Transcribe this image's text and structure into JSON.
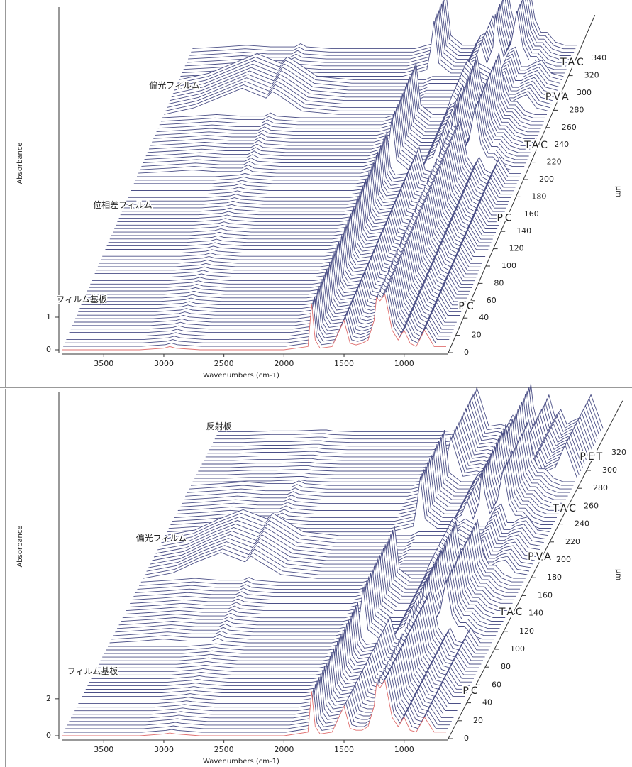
{
  "chart_data": [
    {
      "type": "waterfall",
      "xlabel": "Wavenumbers (cm-1)",
      "ylabel": "Absorbance",
      "zlabel": "μm",
      "xlim": [
        3850,
        650
      ],
      "xticks": [
        3500,
        3000,
        2500,
        2000,
        1500,
        1000
      ],
      "ylim": [
        0,
        10.5
      ],
      "yticks": [
        0,
        1
      ],
      "zlim": [
        0,
        390
      ],
      "zticks": [
        0,
        20,
        40,
        60,
        80,
        100,
        120,
        140,
        160,
        180,
        200,
        220,
        240,
        260,
        280,
        300,
        320,
        340
      ],
      "front_color": "#e07070",
      "x": [
        3850,
        3600,
        3400,
        3200,
        3000,
        2950,
        2900,
        2700,
        2400,
        2000,
        1800,
        1770,
        1740,
        1700,
        1600,
        1500,
        1450,
        1400,
        1350,
        1300,
        1250,
        1230,
        1200,
        1160,
        1100,
        1050,
        1000,
        950,
        900,
        830,
        750,
        650
      ],
      "series": [
        {
          "name": "PC",
          "color": "#4b4f86",
          "z": [
            0,
            4,
            8,
            12,
            16,
            20,
            24,
            28,
            32,
            36,
            40,
            44,
            48,
            52,
            56,
            60,
            64,
            68,
            72,
            76,
            80,
            84,
            88,
            92,
            96,
            100
          ],
          "values": [
            0,
            0,
            0,
            0,
            0.05,
            0.1,
            0.05,
            0,
            0,
            0,
            0.1,
            1.4,
            0.3,
            0.05,
            0.1,
            0.9,
            0.2,
            0.15,
            0.2,
            0.3,
            0.9,
            1.6,
            1.5,
            1.7,
            0.6,
            0.3,
            0.6,
            0.2,
            0.1,
            0.6,
            0.1,
            0.1
          ]
        },
        {
          "name": "PC",
          "color": "#4b4f86",
          "z": [
            104,
            108,
            112,
            116,
            120,
            124,
            128,
            132,
            136,
            140,
            144,
            148,
            152,
            156,
            160,
            164,
            168,
            172,
            176,
            180,
            184,
            188,
            192,
            196,
            200
          ],
          "values": [
            0,
            0,
            0,
            0,
            0.05,
            0.1,
            0.05,
            0,
            0,
            0,
            0.1,
            1.4,
            0.3,
            0.05,
            0.1,
            0.9,
            0.2,
            0.15,
            0.2,
            0.3,
            0.9,
            1.6,
            1.5,
            1.7,
            0.6,
            0.3,
            0.6,
            0.2,
            0.1,
            0.6,
            0.1,
            0.1
          ]
        },
        {
          "name": "TAC",
          "color": "#4b4f86",
          "z": [
            204,
            208,
            212,
            216,
            220,
            224,
            228,
            232,
            236,
            240,
            244,
            248,
            252,
            256,
            260,
            264,
            268
          ],
          "values": [
            0,
            0.05,
            0.1,
            0.05,
            0.05,
            0.15,
            0.05,
            0,
            0,
            0,
            0.2,
            0.8,
            1.7,
            0.4,
            0.1,
            0.1,
            0.4,
            0.5,
            1.0,
            0.4,
            0.9,
            1.9,
            1.2,
            0.6,
            1.0,
            2.0,
            0.9,
            0.5,
            0.5,
            0.2,
            0.1,
            0.1
          ]
        },
        {
          "name": "PVA",
          "color": "#4b4f86",
          "z": [
            272,
            276,
            280,
            284,
            288,
            292,
            296,
            300,
            304,
            308,
            312
          ],
          "values": [
            0,
            0.2,
            0.5,
            0.8,
            0.5,
            0.7,
            0.6,
            0.1,
            0,
            0,
            0,
            0.05,
            0.1,
            0.1,
            0.1,
            0.1,
            0.6,
            0.4,
            0.5,
            0.4,
            0.3,
            0.3,
            0.3,
            0.3,
            0.9,
            1.0,
            0.4,
            0.4,
            0.5,
            0.6,
            0.2,
            0.1
          ]
        },
        {
          "name": "TAC",
          "color": "#4b4f86",
          "z": [
            316,
            320,
            324,
            328,
            332,
            336,
            340,
            344,
            348
          ],
          "values": [
            0,
            0.05,
            0.1,
            0.05,
            0.05,
            0.15,
            0.05,
            0,
            0,
            0,
            0.2,
            0.8,
            1.7,
            0.4,
            0.1,
            0.1,
            0.4,
            0.5,
            1.0,
            0.4,
            0.9,
            1.9,
            1.2,
            0.6,
            1.0,
            2.0,
            0.9,
            0.5,
            0.5,
            0.2,
            0.1,
            0.1
          ]
        }
      ],
      "annotations": [
        {
          "text": "フィルム基板",
          "z": 53
        },
        {
          "text": "位相差フィルム",
          "z": 162
        },
        {
          "text": "偏光フィルム",
          "z": 300
        }
      ]
    },
    {
      "type": "waterfall",
      "xlabel": "Wavenumbers (cm-1)",
      "ylabel": "Absorbance",
      "zlabel": "μm",
      "xlim": [
        3850,
        650
      ],
      "xticks": [
        3500,
        3000,
        2500,
        2000,
        1500,
        1000
      ],
      "ylim": [
        0,
        18.6
      ],
      "yticks": [
        0,
        2
      ],
      "zlim": [
        0,
        378
      ],
      "zticks": [
        0,
        20,
        40,
        60,
        80,
        100,
        120,
        140,
        160,
        180,
        200,
        220,
        240,
        260,
        280,
        300,
        320
      ],
      "front_color": "#e07070",
      "x": [
        3850,
        3600,
        3400,
        3200,
        3000,
        2950,
        2900,
        2700,
        2400,
        2000,
        1800,
        1770,
        1740,
        1700,
        1600,
        1500,
        1450,
        1400,
        1350,
        1300,
        1250,
        1230,
        1200,
        1160,
        1100,
        1050,
        1000,
        950,
        900,
        830,
        750,
        650
      ],
      "series": [
        {
          "name": "PC",
          "color": "#4b4f86",
          "z": [
            0,
            4,
            8,
            12,
            16,
            20,
            24,
            28,
            32,
            36,
            40,
            44,
            48,
            52,
            56,
            60,
            64,
            68,
            72,
            76,
            80,
            84,
            88,
            92,
            96,
            100
          ],
          "values": [
            0,
            0,
            0,
            0,
            0.1,
            0.15,
            0.1,
            0,
            0,
            0,
            0.2,
            2.4,
            0.5,
            0.1,
            0.2,
            1.6,
            0.4,
            0.3,
            0.3,
            0.5,
            1.6,
            2.8,
            2.6,
            3.0,
            1.0,
            0.5,
            1.0,
            0.3,
            0.2,
            1.0,
            0.2,
            0.2
          ]
        },
        {
          "name": "TAC",
          "color": "#4b4f86",
          "z": [
            104,
            108,
            112,
            116,
            120,
            124,
            128,
            132,
            136,
            140,
            144,
            148,
            152,
            156,
            160,
            164,
            168,
            172
          ],
          "values": [
            0,
            0.1,
            0.2,
            0.1,
            0.1,
            0.25,
            0.1,
            0,
            0,
            0,
            0.3,
            1.4,
            3.0,
            0.7,
            0.2,
            0.2,
            0.7,
            0.9,
            1.7,
            0.7,
            1.6,
            3.3,
            2.0,
            1.0,
            1.7,
            3.4,
            1.5,
            0.9,
            0.9,
            0.4,
            0.2,
            0.2
          ]
        },
        {
          "name": "PVA",
          "color": "#4b4f86",
          "z": [
            176,
            180,
            184,
            188,
            192,
            196,
            200,
            204,
            208,
            212,
            216,
            220,
            224
          ],
          "values": [
            0,
            0.3,
            0.9,
            1.4,
            0.9,
            1.2,
            1.0,
            0.2,
            0,
            0,
            0,
            0.1,
            0.2,
            0.2,
            0.2,
            0.2,
            1.0,
            0.7,
            0.9,
            0.7,
            0.5,
            0.5,
            0.5,
            0.5,
            1.5,
            1.7,
            0.7,
            0.7,
            0.9,
            1.0,
            0.3,
            0.2
          ]
        },
        {
          "name": "TAC",
          "color": "#4b4f86",
          "z": [
            228,
            232,
            236,
            240,
            244,
            248,
            252,
            256,
            260,
            264,
            268,
            272,
            276,
            280
          ],
          "values": [
            0,
            0.1,
            0.2,
            0.1,
            0.1,
            0.25,
            0.1,
            0,
            0,
            0,
            0.3,
            1.4,
            3.0,
            0.7,
            0.2,
            0.2,
            0.7,
            0.9,
            1.7,
            0.7,
            1.6,
            3.3,
            2.0,
            1.0,
            1.7,
            3.4,
            1.5,
            0.9,
            0.9,
            0.4,
            0.2,
            0.2
          ]
        },
        {
          "name": "PET",
          "color": "#4b4f86",
          "z": [
            284,
            288,
            292,
            296,
            300,
            304,
            308,
            312,
            316,
            320,
            324,
            328,
            332,
            336,
            340
          ],
          "values": [
            0,
            0,
            0.05,
            0.05,
            0.1,
            0.1,
            0.05,
            0,
            0,
            0,
            0.1,
            0.4,
            1.2,
            2.4,
            0.3,
            0.4,
            0.3,
            0.9,
            0.3,
            0.4,
            2.6,
            1.4,
            0.6,
            0.4,
            2.0,
            0.8,
            1.2,
            0.4,
            0.6,
            0.8,
            2.0,
            0.2
          ]
        }
      ],
      "annotations": [
        {
          "text": "フィルム基板",
          "z": 67
        },
        {
          "text": "偏光フィルム",
          "z": 216
        },
        {
          "text": "反射板",
          "z": 341
        }
      ]
    }
  ]
}
